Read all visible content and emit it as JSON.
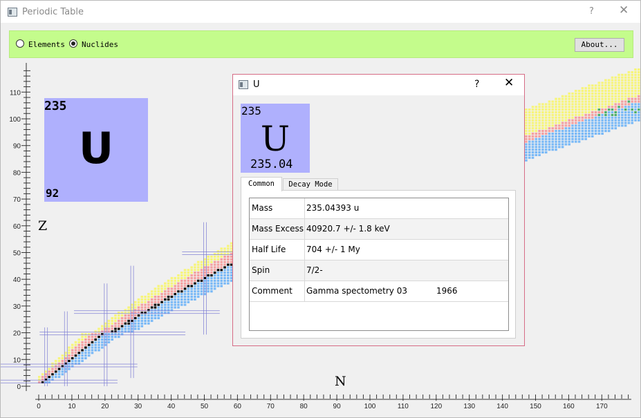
{
  "window": {
    "title": "Periodic Table",
    "help_label": "?",
    "close_label": "✕"
  },
  "toolbar": {
    "mode_elements": "Elements",
    "mode_nuclides": "Nuclides",
    "selected_mode": "Nuclides",
    "about_label": "About..."
  },
  "chart": {
    "z_axis_label": "Z",
    "n_axis_label": "N",
    "z_ticks": [
      "0",
      "10",
      "20",
      "30",
      "40",
      "50",
      "60",
      "70",
      "80",
      "90",
      "100",
      "110"
    ],
    "n_ticks": [
      "0",
      "10",
      "20",
      "30",
      "40",
      "50",
      "60",
      "70",
      "80",
      "90",
      "100",
      "110",
      "120",
      "130",
      "140",
      "150",
      "160",
      "170"
    ]
  },
  "highlight": {
    "mass_number": "235",
    "symbol": "U",
    "atomic_number": "92"
  },
  "dialog": {
    "title": "U",
    "help_label": "?",
    "close_label": "✕",
    "card": {
      "mass_number": "235",
      "symbol": "U",
      "atomic_weight": "235.04"
    },
    "tabs": [
      {
        "label": "Common",
        "active": true
      },
      {
        "label": "Decay Mode",
        "active": false
      }
    ],
    "properties": [
      {
        "key": "Mass",
        "value": "235.04393 u"
      },
      {
        "key": "Mass Excess",
        "value": "40920.7 +/- 1.8 keV"
      },
      {
        "key": "Half Life",
        "value": "704 +/- 1 My"
      },
      {
        "key": "Spin",
        "value": "7/2-"
      },
      {
        "key": "Comment",
        "value": "Gamma spectometry 03           1966"
      }
    ]
  },
  "colors": {
    "toolbar_bg": "#c4fc8c",
    "card_bg": "#afb0fd",
    "stable": "#000000",
    "beta_minus": "#79b9f7",
    "beta_plus": "#f4a0a0",
    "alpha": "#f7f57a",
    "dialog_border": "#d66b85"
  }
}
